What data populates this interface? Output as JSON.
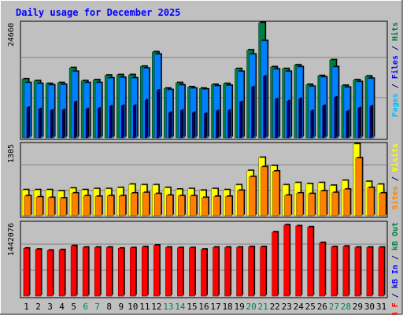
{
  "page_title": "Daily usage for December 2025",
  "chart_data": [
    {
      "type": "bar",
      "panel": "hits-files-pages",
      "scale_label": "24660",
      "ylim": [
        0,
        24660
      ],
      "grid": true,
      "categories": [
        "1",
        "2",
        "3",
        "4",
        "5",
        "6",
        "7",
        "8",
        "9",
        "10",
        "11",
        "12",
        "13",
        "14",
        "15",
        "16",
        "17",
        "18",
        "19",
        "20",
        "21",
        "22",
        "23",
        "24",
        "25",
        "26",
        "27",
        "28",
        "29",
        "30",
        "31"
      ],
      "weekend_days": [
        "6",
        "7",
        "13",
        "14",
        "20",
        "21",
        "27",
        "28"
      ],
      "right_label_parts": [
        {
          "text": "Pages",
          "color": "#00bfff"
        },
        {
          "text": " / ",
          "color": "#000080"
        },
        {
          "text": "Files",
          "color": "#0000ff"
        },
        {
          "text": " / ",
          "color": "#000080"
        },
        {
          "text": "Hits",
          "color": "#008040"
        }
      ],
      "series": [
        {
          "name": "Hits",
          "color": "#008040",
          "values": [
            12600,
            12200,
            11600,
            11800,
            15000,
            12200,
            12400,
            13400,
            13500,
            13500,
            15300,
            18400,
            10600,
            11800,
            10900,
            10600,
            11400,
            11600,
            14800,
            18800,
            24660,
            15200,
            14800,
            15600,
            11400,
            13300,
            16700,
            11200,
            12400,
            13200,
            0
          ]
        },
        {
          "name": "Files",
          "color": "#0080ff",
          "values": [
            11800,
            11600,
            11300,
            11400,
            14200,
            11800,
            11800,
            12800,
            12900,
            12800,
            14900,
            17900,
            10300,
            11300,
            10600,
            10400,
            11100,
            11200,
            14200,
            17900,
            20800,
            14700,
            14200,
            15200,
            11000,
            13000,
            15200,
            10800,
            12000,
            12700,
            0
          ]
        },
        {
          "name": "Pages",
          "color": "#000080",
          "values": [
            6500,
            6200,
            5900,
            6000,
            7700,
            6200,
            6300,
            6800,
            6900,
            6900,
            8100,
            10200,
            5400,
            5900,
            5400,
            5200,
            5800,
            5900,
            7700,
            10900,
            13200,
            8300,
            7900,
            8400,
            5800,
            6900,
            8700,
            5700,
            6400,
            6800,
            0
          ]
        }
      ]
    },
    {
      "type": "bar",
      "panel": "visits-sites",
      "scale_label": "1305",
      "ylim": [
        0,
        1305
      ],
      "grid": true,
      "right_label_parts": [
        {
          "text": "Sites",
          "color": "#ff8000"
        },
        {
          "text": " / ",
          "color": "#000080"
        },
        {
          "text": "Visits",
          "color": "#ffff00"
        }
      ],
      "series": [
        {
          "name": "Visits",
          "color": "#ffff00",
          "values": [
            470,
            470,
            470,
            450,
            500,
            470,
            490,
            490,
            510,
            570,
            560,
            560,
            510,
            480,
            490,
            460,
            490,
            470,
            560,
            820,
            1060,
            910,
            560,
            600,
            580,
            600,
            550,
            640,
            1305,
            620,
            570
          ]
        },
        {
          "name": "Sites",
          "color": "#ff8000",
          "values": [
            360,
            340,
            330,
            320,
            410,
            360,
            350,
            360,
            360,
            410,
            420,
            400,
            370,
            360,
            360,
            330,
            350,
            350,
            460,
            710,
            890,
            810,
            370,
            410,
            400,
            450,
            420,
            480,
            1050,
            510,
            410
          ]
        }
      ]
    },
    {
      "type": "bar",
      "panel": "kbytes",
      "scale_label": "1442076",
      "ylim": [
        0,
        1442076
      ],
      "grid": true,
      "right_label_parts": [
        {
          "text": "kB F",
          "color": "#ff0000"
        },
        {
          "text": " / ",
          "color": "#000080"
        },
        {
          "text": "kB In",
          "color": "#0000ff"
        },
        {
          "text": " / ",
          "color": "#000080"
        },
        {
          "text": "kB Out",
          "color": "#008040"
        }
      ],
      "series": [
        {
          "name": "kB F",
          "color": "#ff0000",
          "values": [
            940000,
            920000,
            900000,
            910000,
            990000,
            960000,
            960000,
            960000,
            940000,
            950000,
            970000,
            1000000,
            960000,
            950000,
            950000,
            920000,
            960000,
            960000,
            960000,
            970000,
            970000,
            1260000,
            1400000,
            1380000,
            1360000,
            1050000,
            970000,
            980000,
            960000,
            960000,
            960000
          ]
        }
      ]
    }
  ]
}
